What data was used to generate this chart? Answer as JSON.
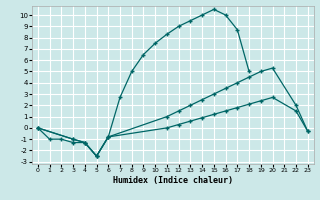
{
  "xlabel": "Humidex (Indice chaleur)",
  "bg_color": "#cce8e8",
  "grid_color": "#ffffff",
  "line_color": "#006666",
  "xlim": [
    -0.5,
    23.5
  ],
  "ylim": [
    -3.2,
    10.8
  ],
  "xticks": [
    0,
    1,
    2,
    3,
    4,
    5,
    6,
    7,
    8,
    9,
    10,
    11,
    12,
    13,
    14,
    15,
    16,
    17,
    18,
    19,
    20,
    21,
    22,
    23
  ],
  "yticks": [
    -3,
    -2,
    -1,
    0,
    1,
    2,
    3,
    4,
    5,
    6,
    7,
    8,
    9,
    10
  ],
  "line1_x": [
    0,
    1,
    2,
    3,
    4,
    5,
    6,
    7,
    8,
    9,
    10,
    11,
    12,
    13,
    14,
    15,
    16,
    17,
    18
  ],
  "line1_y": [
    0,
    -1,
    -1,
    -1.3,
    -1.3,
    -2.5,
    -0.8,
    2.7,
    5.0,
    6.5,
    7.5,
    8.3,
    9.0,
    9.5,
    10.0,
    10.5,
    10.0,
    8.7,
    5.0
  ],
  "line2_x": [
    0,
    3,
    4,
    5,
    6,
    11,
    12,
    13,
    14,
    15,
    16,
    17,
    18,
    19,
    20,
    22,
    23
  ],
  "line2_y": [
    0,
    -1,
    -1.3,
    -2.5,
    -0.8,
    1.0,
    1.5,
    2.0,
    2.5,
    3.0,
    3.5,
    4.0,
    4.5,
    5.0,
    5.3,
    2.0,
    -0.3
  ],
  "line3_x": [
    0,
    3,
    4,
    5,
    6,
    11,
    12,
    13,
    14,
    15,
    16,
    17,
    18,
    19,
    20,
    22,
    23
  ],
  "line3_y": [
    0,
    -1,
    -1.3,
    -2.5,
    -0.8,
    0.0,
    0.3,
    0.6,
    0.9,
    1.2,
    1.5,
    1.8,
    2.1,
    2.4,
    2.7,
    1.5,
    -0.3
  ]
}
